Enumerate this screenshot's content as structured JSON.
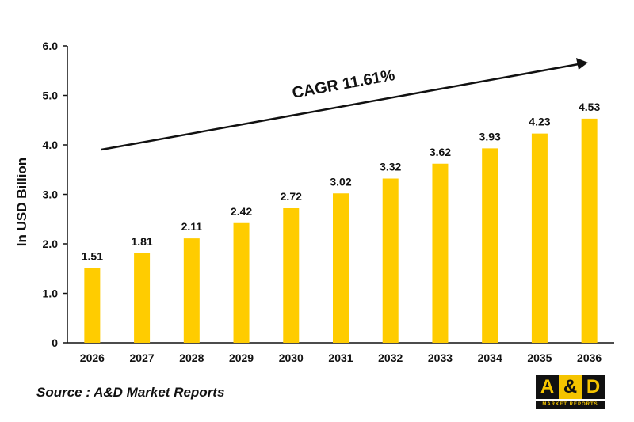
{
  "chart_data": {
    "type": "bar",
    "categories": [
      "2026",
      "2027",
      "2028",
      "2029",
      "2030",
      "2031",
      "2032",
      "2033",
      "2034",
      "2035",
      "2036"
    ],
    "values": [
      1.51,
      1.81,
      2.11,
      2.42,
      2.72,
      3.02,
      3.32,
      3.62,
      3.93,
      4.23,
      4.53
    ],
    "data_labels": [
      "1.51",
      "1.81",
      "2.11",
      "2.42",
      "2.72",
      "3.02",
      "3.32",
      "3.62",
      "3.93",
      "4.23",
      "4.53"
    ],
    "title": "",
    "xlabel": "",
    "ylabel": "In USD Billion",
    "ylim": [
      0,
      6
    ],
    "yticks": [
      "0",
      "1.0",
      "2.0",
      "3.0",
      "4.0",
      "5.0",
      "6.0"
    ],
    "annotation": "CAGR 11.61%",
    "grid": false,
    "bar_color": "#FFCC00"
  },
  "source": "Source : A&D Market Reports",
  "logo": {
    "letters": [
      "A",
      "&",
      "D"
    ],
    "subtitle": "MARKET REPORTS"
  }
}
